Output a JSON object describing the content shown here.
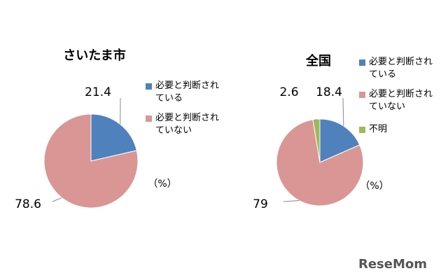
{
  "chart_data": [
    {
      "type": "pie",
      "title": "さいたま市",
      "unit": "（%）",
      "categories": [
        "必要と判断されている",
        "必要と判断されていない"
      ],
      "values": [
        21.4,
        78.6
      ],
      "colors": [
        "#4f81bd",
        "#d99694"
      ]
    },
    {
      "type": "pie",
      "title": "全国",
      "unit": "（%）",
      "categories": [
        "必要と判断されている",
        "必要と判断されていない",
        "不明"
      ],
      "values": [
        18.4,
        79,
        2.6
      ],
      "colors": [
        "#4f81bd",
        "#d99694",
        "#9bbb59"
      ]
    }
  ],
  "watermark": "ReseMom"
}
